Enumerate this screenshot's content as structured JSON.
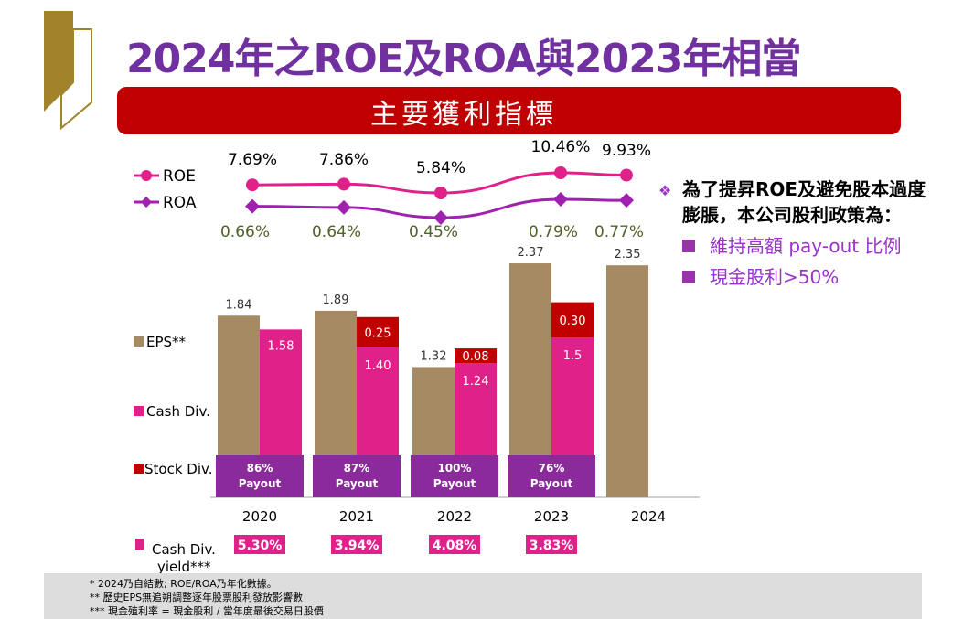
{
  "header": {
    "title": "2024年之ROE及ROA與2023年相當",
    "banner": "主要獲利指標"
  },
  "colors": {
    "title": "#7030a0",
    "banner": "#c00000",
    "eps": "#a68a64",
    "cash_div": "#e0218a",
    "stock_div": "#c00000",
    "payout": "#8b2a9b",
    "roe_line": "#e0218a",
    "roa_line": "#a020b0",
    "roa_text": "#4f6228",
    "logo": "#a0832a"
  },
  "chart_data": [
    {
      "type": "line",
      "title": "ROE / ROA",
      "categories": [
        "2020",
        "2021",
        "2022",
        "2023",
        "2024"
      ],
      "series": [
        {
          "name": "ROE",
          "values": [
            7.69,
            7.86,
            5.84,
            10.46,
            9.93
          ],
          "labels": [
            "7.69%",
            "7.86%",
            "5.84%",
            "10.46%",
            "9.93%"
          ],
          "marker": "circle"
        },
        {
          "name": "ROA",
          "values": [
            0.66,
            0.64,
            0.45,
            0.79,
            0.77
          ],
          "labels": [
            "0.66%",
            "0.64%",
            "0.45%",
            "0.79%",
            "0.77%"
          ],
          "marker": "diamond"
        }
      ],
      "legend": [
        "ROE",
        "ROA"
      ],
      "legend_position": "left"
    },
    {
      "type": "bar",
      "categories": [
        "2020",
        "2021",
        "2022",
        "2023",
        "2024"
      ],
      "series": [
        {
          "name": "EPS**",
          "values": [
            1.84,
            1.89,
            1.32,
            2.37,
            2.35
          ],
          "labels": [
            "1.84",
            "1.89",
            "1.32",
            "2.37",
            "2.35"
          ]
        },
        {
          "name": "Cash Div.",
          "values": [
            1.58,
            1.4,
            1.24,
            1.5,
            null
          ],
          "labels": [
            "1.58",
            "1.40",
            "1.24",
            "1.5",
            ""
          ]
        },
        {
          "name": "Stock Div.",
          "values": [
            0,
            0.25,
            0.08,
            0.3,
            null
          ],
          "labels": [
            "",
            "0.25",
            "0.08",
            "0.30",
            ""
          ]
        }
      ],
      "payout": [
        "86%",
        "87%",
        "100%",
        "76%",
        null
      ],
      "payout_label": "Payout",
      "cash_div_yield": {
        "label": "Cash Div. yield***",
        "values": [
          "5.30%",
          "3.94%",
          "4.08%",
          "3.83%",
          null
        ]
      },
      "legend": [
        "EPS**",
        "Cash Div.",
        "Stock Div."
      ],
      "legend_position": "left",
      "ylim": [
        0,
        2.5
      ]
    }
  ],
  "policy": {
    "heading": "為了提昇ROE及避免股本過度膨脹，本公司股利政策為：",
    "items": [
      "維持高額 pay-out 比例",
      "現金股利>50%"
    ]
  },
  "footnotes": [
    "*   2024乃自結數; ROE/ROA乃年化數據。",
    "**   歷史EPS無追朔調整逐年股票股利發放影響數",
    "***  現金殖利率 = 現金股利 / 當年度最後交易日股價"
  ]
}
